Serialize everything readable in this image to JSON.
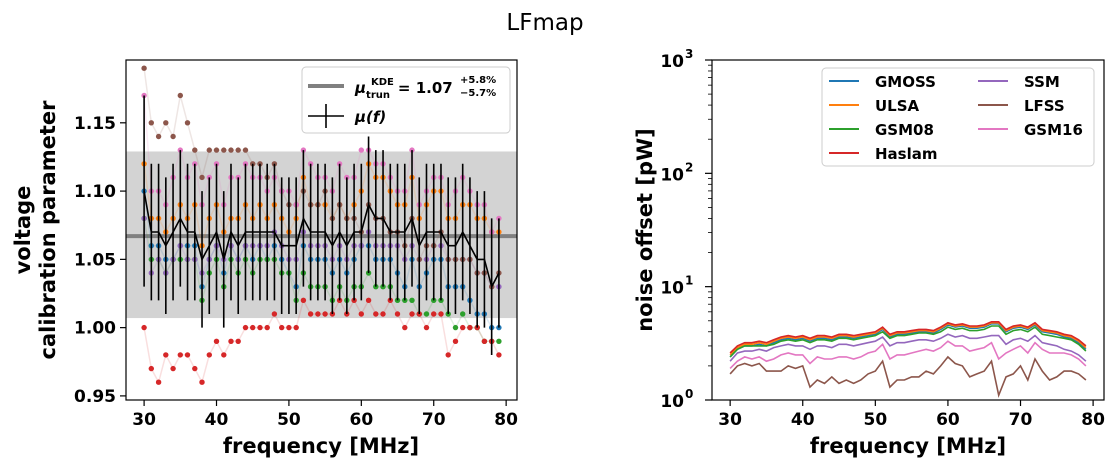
{
  "figure_title": "LFmap",
  "chart_data": [
    {
      "type": "scatter",
      "xlabel": "frequency [MHz]",
      "ylabel_line1": "voltage",
      "ylabel_line2": "calibration parameter",
      "xlim": [
        27.5,
        81.5
      ],
      "ylim": [
        0.947,
        1.196
      ],
      "xticks": [
        30,
        40,
        50,
        60,
        70,
        80
      ],
      "yticks": [
        0.95,
        1.0,
        1.05,
        1.1,
        1.15
      ],
      "ytick_labels": [
        "0.95",
        "1.00",
        "1.05",
        "1.10",
        "1.15"
      ],
      "legend_position": "top-right",
      "legend": {
        "kde_label": "1.07",
        "kde_plus": "+5.8%",
        "kde_minus": "−5.7%",
        "mu_label": "μ(f)"
      },
      "kde": {
        "value": 1.067,
        "band": [
          1.007,
          1.129
        ],
        "color": "#808080"
      },
      "x": [
        30,
        31,
        32,
        33,
        34,
        35,
        36,
        37,
        38,
        39,
        40,
        41,
        42,
        43,
        44,
        45,
        46,
        47,
        48,
        49,
        50,
        51,
        52,
        53,
        54,
        55,
        56,
        57,
        58,
        59,
        60,
        61,
        62,
        63,
        64,
        65,
        66,
        67,
        68,
        69,
        70,
        71,
        72,
        73,
        74,
        75,
        76,
        77,
        78,
        79
      ],
      "mean": [
        1.1,
        1.07,
        1.07,
        1.06,
        1.07,
        1.08,
        1.07,
        1.07,
        1.05,
        1.06,
        1.07,
        1.05,
        1.07,
        1.06,
        1.07,
        1.07,
        1.07,
        1.07,
        1.07,
        1.06,
        1.06,
        1.06,
        1.08,
        1.07,
        1.07,
        1.07,
        1.06,
        1.07,
        1.06,
        1.07,
        1.07,
        1.09,
        1.08,
        1.08,
        1.07,
        1.07,
        1.07,
        1.08,
        1.06,
        1.07,
        1.07,
        1.07,
        1.06,
        1.06,
        1.07,
        1.06,
        1.05,
        1.05,
        1.03,
        1.04
      ],
      "err": [
        0.07,
        0.05,
        0.05,
        0.05,
        0.05,
        0.05,
        0.05,
        0.05,
        0.05,
        0.05,
        0.05,
        0.05,
        0.05,
        0.05,
        0.05,
        0.05,
        0.05,
        0.05,
        0.05,
        0.05,
        0.05,
        0.05,
        0.05,
        0.05,
        0.05,
        0.05,
        0.05,
        0.05,
        0.05,
        0.05,
        0.05,
        0.05,
        0.05,
        0.05,
        0.05,
        0.05,
        0.05,
        0.05,
        0.05,
        0.05,
        0.05,
        0.05,
        0.05,
        0.05,
        0.05,
        0.05,
        0.05,
        0.05,
        0.05,
        0.04
      ],
      "series": [
        {
          "name": "GMOSS",
          "color": "#1f77b4",
          "values": [
            1.1,
            1.06,
            1.06,
            1.05,
            1.05,
            1.06,
            1.06,
            1.06,
            1.03,
            1.05,
            1.06,
            1.04,
            1.06,
            1.05,
            1.06,
            1.05,
            1.06,
            1.05,
            1.06,
            1.05,
            1.04,
            1.03,
            1.06,
            1.05,
            1.05,
            1.05,
            1.04,
            1.05,
            1.04,
            1.05,
            1.06,
            1.06,
            1.05,
            1.05,
            1.05,
            1.04,
            1.03,
            1.05,
            1.03,
            1.04,
            1.05,
            1.05,
            1.03,
            1.03,
            1.03,
            1.02,
            1.01,
            1.01,
            1.0,
            1.0
          ]
        },
        {
          "name": "ULSA",
          "color": "#ff7f0e",
          "values": [
            1.12,
            1.08,
            1.08,
            1.07,
            1.08,
            1.09,
            1.08,
            1.09,
            1.06,
            1.08,
            1.09,
            1.07,
            1.08,
            1.08,
            1.09,
            1.08,
            1.09,
            1.08,
            1.09,
            1.08,
            1.07,
            1.08,
            1.11,
            1.09,
            1.09,
            1.09,
            1.08,
            1.09,
            1.08,
            1.09,
            1.1,
            1.12,
            1.11,
            1.11,
            1.1,
            1.09,
            1.09,
            1.11,
            1.08,
            1.09,
            1.1,
            1.1,
            1.08,
            1.08,
            1.09,
            1.09,
            1.08,
            1.08,
            1.07,
            1.07
          ]
        },
        {
          "name": "GSM08",
          "color": "#2ca02c",
          "values": [
            1.08,
            1.05,
            1.05,
            1.04,
            1.05,
            1.05,
            1.05,
            1.05,
            1.02,
            1.04,
            1.05,
            1.03,
            1.05,
            1.04,
            1.05,
            1.04,
            1.05,
            1.05,
            1.05,
            1.04,
            1.04,
            1.02,
            1.04,
            1.03,
            1.03,
            1.03,
            1.02,
            1.03,
            1.02,
            1.03,
            1.03,
            1.04,
            1.03,
            1.03,
            1.03,
            1.02,
            1.02,
            1.02,
            1.01,
            1.01,
            1.02,
            1.02,
            1.01,
            1.0,
            1.01,
            1.0,
            1.0,
            0.99,
            0.99,
            0.99
          ]
        },
        {
          "name": "Haslam",
          "color": "#d62728",
          "values": [
            1.0,
            0.97,
            0.96,
            0.98,
            0.97,
            0.98,
            0.98,
            0.97,
            0.96,
            0.98,
            0.99,
            0.98,
            0.99,
            0.99,
            1.0,
            1.0,
            1.0,
            1.0,
            1.01,
            1.0,
            1.0,
            1.0,
            1.02,
            1.01,
            1.01,
            1.01,
            1.01,
            1.02,
            1.01,
            1.02,
            1.01,
            1.02,
            1.01,
            1.01,
            1.02,
            1.01,
            1.0,
            1.01,
            1.01,
            1.0,
            1.01,
            1.01,
            0.98,
            0.99,
            1.0,
            1.0,
            1.0,
            0.99,
            0.99,
            0.98
          ]
        },
        {
          "name": "SSM",
          "color": "#9467bd",
          "values": [
            1.08,
            1.04,
            1.05,
            1.04,
            1.05,
            1.06,
            1.05,
            1.05,
            1.04,
            1.05,
            1.06,
            1.05,
            1.06,
            1.05,
            1.06,
            1.06,
            1.06,
            1.06,
            1.07,
            1.06,
            1.05,
            1.05,
            1.07,
            1.06,
            1.06,
            1.06,
            1.05,
            1.06,
            1.05,
            1.06,
            1.06,
            1.07,
            1.06,
            1.06,
            1.06,
            1.06,
            1.05,
            1.06,
            1.05,
            1.05,
            1.06,
            1.06,
            1.05,
            1.05,
            1.05,
            1.05,
            1.04,
            1.04,
            1.03,
            1.03
          ]
        },
        {
          "name": "LFSS",
          "color": "#8c564b",
          "values": [
            1.19,
            1.15,
            1.14,
            1.15,
            1.14,
            1.17,
            1.15,
            1.13,
            1.11,
            1.13,
            1.13,
            1.13,
            1.13,
            1.13,
            1.13,
            1.12,
            1.12,
            1.11,
            1.12,
            1.1,
            1.09,
            1.09,
            1.1,
            1.09,
            1.09,
            1.1,
            1.08,
            1.09,
            1.08,
            1.08,
            1.07,
            1.09,
            1.08,
            1.08,
            1.07,
            1.07,
            1.06,
            1.08,
            1.05,
            1.06,
            1.06,
            1.07,
            1.05,
            1.05,
            1.05,
            1.05,
            1.04,
            1.04,
            1.03,
            1.04
          ]
        },
        {
          "name": "GSM16",
          "color": "#e377c2",
          "values": [
            1.17,
            1.1,
            1.1,
            1.09,
            1.11,
            1.13,
            1.11,
            1.12,
            1.09,
            1.11,
            1.12,
            1.09,
            1.11,
            1.11,
            1.12,
            1.11,
            1.11,
            1.1,
            1.11,
            1.1,
            1.1,
            1.09,
            1.13,
            1.12,
            1.11,
            1.11,
            1.1,
            1.12,
            1.11,
            1.11,
            1.13,
            1.13,
            1.12,
            1.12,
            1.11,
            1.1,
            1.1,
            1.13,
            1.09,
            1.1,
            1.11,
            1.11,
            1.09,
            1.1,
            1.11,
            1.1,
            1.09,
            1.09,
            1.07,
            1.08
          ]
        }
      ]
    },
    {
      "type": "line",
      "xlabel": "frequency [MHz]",
      "ylabel": "noise offset [pW]",
      "yscale": "log",
      "xlim": [
        27.5,
        81.5
      ],
      "ylim": [
        1,
        1000
      ],
      "xticks": [
        30,
        40,
        50,
        60,
        70,
        80
      ],
      "ytick_labels": [
        {
          "base": "10",
          "exp": "0"
        },
        {
          "base": "10",
          "exp": "1"
        },
        {
          "base": "10",
          "exp": "2"
        },
        {
          "base": "10",
          "exp": "3"
        }
      ],
      "legend_position": "top-right",
      "x": [
        30,
        31,
        32,
        33,
        34,
        35,
        36,
        37,
        38,
        39,
        40,
        41,
        42,
        43,
        44,
        45,
        46,
        47,
        48,
        49,
        50,
        51,
        52,
        53,
        54,
        55,
        56,
        57,
        58,
        59,
        60,
        61,
        62,
        63,
        64,
        65,
        66,
        67,
        68,
        69,
        70,
        71,
        72,
        73,
        74,
        75,
        76,
        77,
        78,
        79
      ],
      "series": [
        {
          "name": "GMOSS",
          "color": "#1f77b4",
          "values": [
            2.4,
            2.8,
            3.0,
            3.0,
            3.1,
            3.0,
            3.2,
            3.4,
            3.5,
            3.4,
            3.5,
            3.3,
            3.5,
            3.5,
            3.4,
            3.6,
            3.6,
            3.5,
            3.6,
            3.7,
            3.8,
            4.2,
            3.6,
            3.8,
            3.8,
            3.9,
            4.0,
            4.0,
            3.9,
            4.2,
            4.6,
            4.4,
            4.5,
            4.3,
            4.3,
            4.4,
            4.7,
            4.7,
            4.0,
            4.3,
            4.4,
            4.2,
            4.6,
            4.0,
            3.9,
            3.8,
            3.6,
            3.5,
            3.2,
            2.8
          ]
        },
        {
          "name": "ULSA",
          "color": "#ff7f0e",
          "values": [
            2.5,
            2.9,
            3.1,
            3.1,
            3.2,
            3.1,
            3.3,
            3.5,
            3.6,
            3.5,
            3.6,
            3.4,
            3.6,
            3.6,
            3.5,
            3.7,
            3.7,
            3.6,
            3.7,
            3.8,
            3.9,
            4.3,
            3.7,
            3.9,
            3.9,
            4.0,
            4.1,
            4.1,
            4.0,
            4.3,
            4.7,
            4.5,
            4.6,
            4.4,
            4.4,
            4.5,
            4.8,
            4.8,
            4.1,
            4.4,
            4.5,
            4.3,
            4.7,
            4.1,
            4.0,
            3.9,
            3.7,
            3.6,
            3.3,
            2.9
          ]
        },
        {
          "name": "GSM08",
          "color": "#2ca02c",
          "values": [
            2.4,
            2.8,
            3.0,
            3.0,
            3.0,
            3.0,
            3.1,
            3.3,
            3.4,
            3.3,
            3.4,
            3.2,
            3.4,
            3.4,
            3.3,
            3.5,
            3.5,
            3.4,
            3.5,
            3.6,
            3.7,
            4.0,
            3.5,
            3.7,
            3.7,
            3.8,
            3.9,
            3.9,
            3.8,
            4.0,
            4.4,
            4.2,
            4.3,
            4.1,
            4.1,
            4.2,
            4.5,
            4.5,
            3.8,
            4.1,
            4.2,
            4.0,
            4.4,
            3.8,
            3.7,
            3.6,
            3.5,
            3.4,
            3.1,
            2.7
          ]
        },
        {
          "name": "Haslam",
          "color": "#d62728",
          "values": [
            2.6,
            3.0,
            3.2,
            3.2,
            3.3,
            3.2,
            3.4,
            3.6,
            3.7,
            3.6,
            3.7,
            3.5,
            3.7,
            3.7,
            3.6,
            3.8,
            3.8,
            3.7,
            3.8,
            3.9,
            4.0,
            4.4,
            3.8,
            4.0,
            4.0,
            4.1,
            4.2,
            4.2,
            4.1,
            4.4,
            4.8,
            4.6,
            4.7,
            4.5,
            4.5,
            4.6,
            4.9,
            4.9,
            4.2,
            4.5,
            4.6,
            4.4,
            4.8,
            4.2,
            4.1,
            4.0,
            3.8,
            3.7,
            3.4,
            3.0
          ]
        },
        {
          "name": "SSM",
          "color": "#9467bd",
          "values": [
            2.2,
            2.6,
            2.7,
            2.7,
            2.8,
            2.7,
            2.9,
            3.0,
            3.1,
            3.0,
            3.0,
            2.8,
            3.0,
            3.0,
            2.9,
            3.1,
            3.1,
            3.0,
            3.1,
            3.2,
            3.3,
            3.6,
            3.0,
            3.2,
            3.2,
            3.3,
            3.4,
            3.4,
            3.3,
            3.5,
            3.8,
            3.6,
            3.7,
            3.5,
            3.5,
            3.6,
            3.7,
            3.7,
            3.1,
            3.4,
            3.5,
            3.3,
            3.7,
            3.2,
            3.1,
            3.0,
            2.8,
            2.7,
            2.5,
            2.2
          ]
        },
        {
          "name": "LFSS",
          "color": "#8c564b",
          "values": [
            1.7,
            2.0,
            2.1,
            2.0,
            2.1,
            1.8,
            1.8,
            1.8,
            2.0,
            1.9,
            2.0,
            1.3,
            1.5,
            1.4,
            1.6,
            1.4,
            1.5,
            1.4,
            1.5,
            1.7,
            1.8,
            2.2,
            1.3,
            1.5,
            1.5,
            1.6,
            1.6,
            1.8,
            1.7,
            2.0,
            2.4,
            2.1,
            2.0,
            1.6,
            1.7,
            1.8,
            2.2,
            1.1,
            1.6,
            1.7,
            2.0,
            1.5,
            2.3,
            1.8,
            1.5,
            1.6,
            1.8,
            1.8,
            1.7,
            1.5
          ]
        },
        {
          "name": "GSM16",
          "color": "#e377c2",
          "values": [
            1.9,
            2.2,
            2.4,
            2.3,
            2.4,
            2.2,
            2.3,
            2.5,
            2.6,
            2.5,
            2.5,
            2.1,
            2.4,
            2.3,
            2.3,
            2.4,
            2.4,
            2.3,
            2.4,
            2.6,
            2.7,
            3.1,
            2.3,
            2.5,
            2.5,
            2.6,
            2.7,
            2.8,
            2.7,
            2.9,
            3.3,
            3.0,
            3.0,
            2.7,
            2.8,
            2.9,
            3.2,
            2.3,
            2.6,
            2.8,
            3.0,
            2.6,
            3.2,
            2.8,
            2.6,
            2.6,
            2.6,
            2.5,
            2.3,
            2.0
          ]
        }
      ]
    }
  ]
}
